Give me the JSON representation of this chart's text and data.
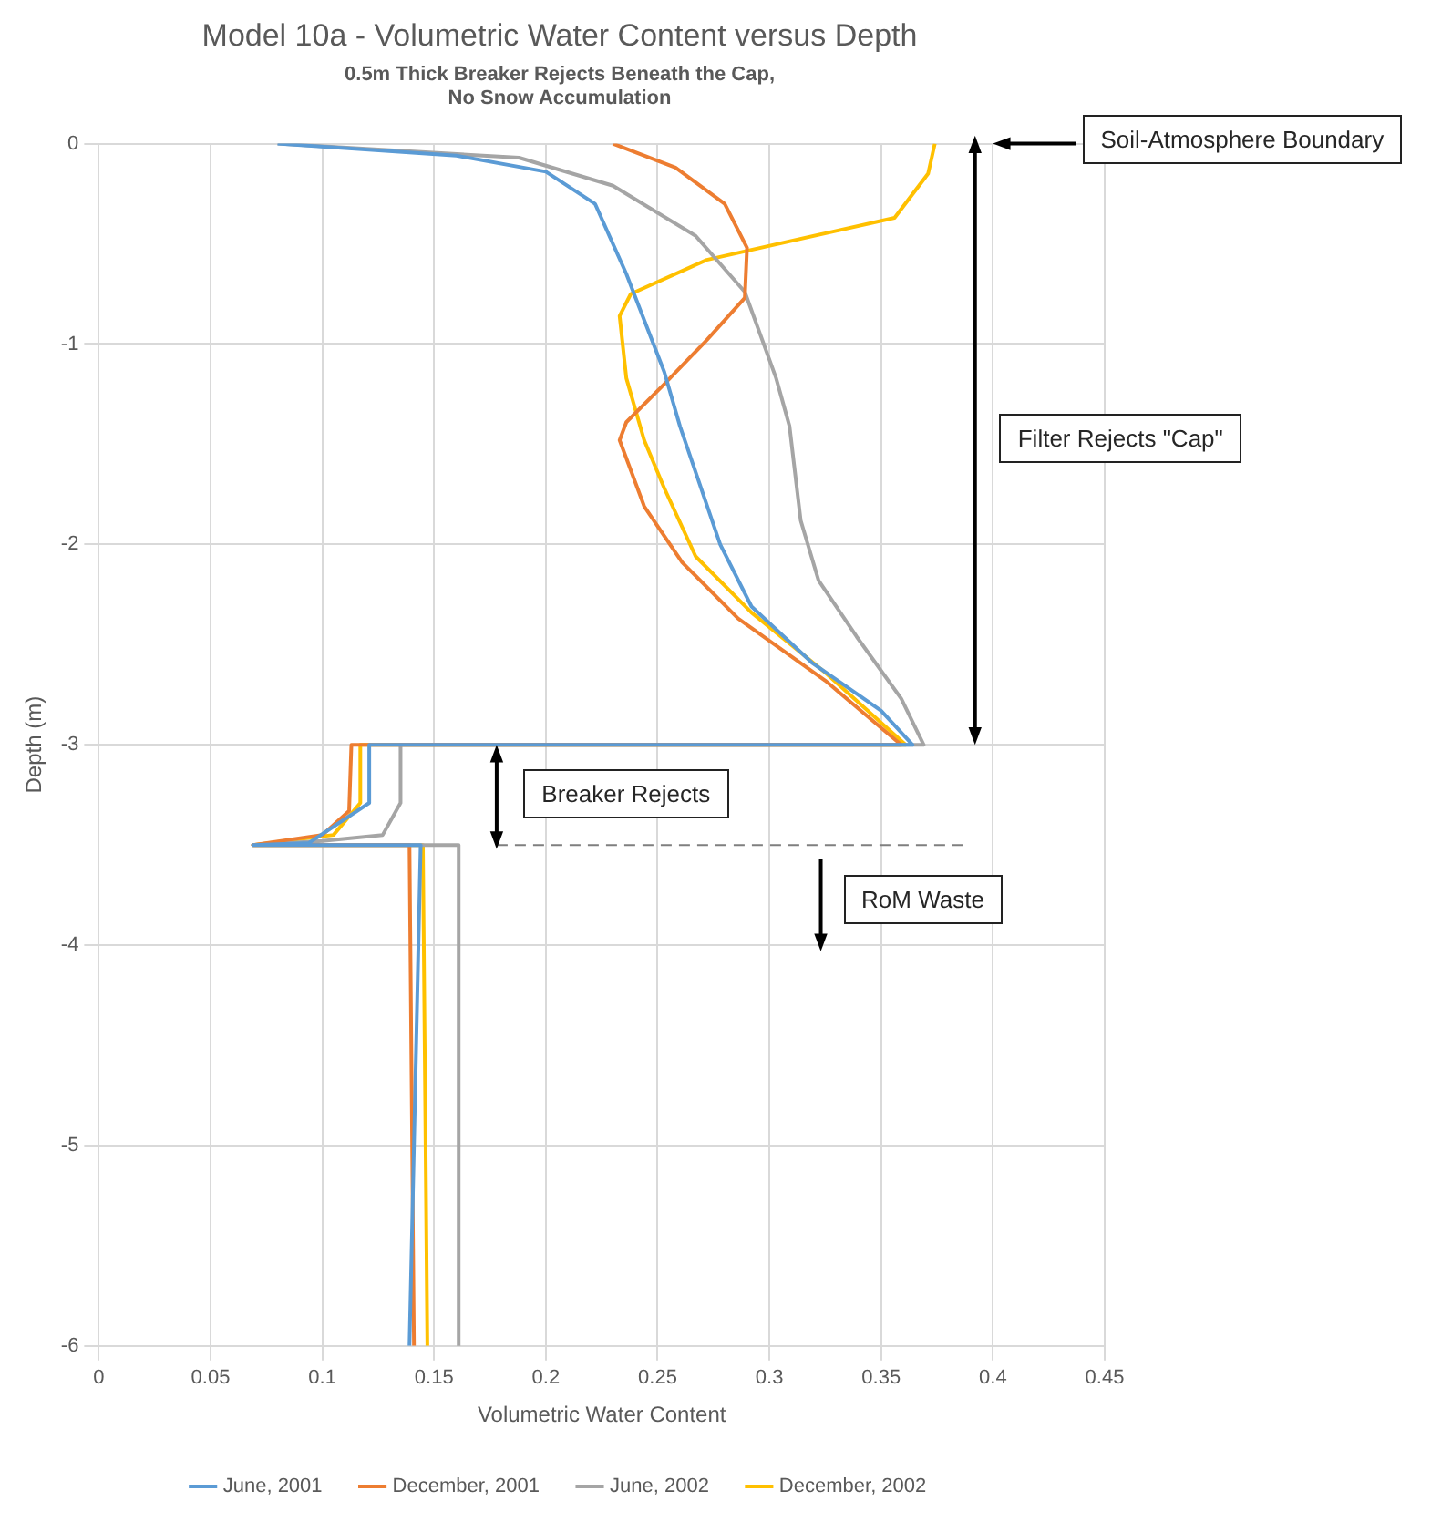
{
  "chart_data": {
    "type": "line",
    "title": "Model 10a - Volumetric Water Content versus Depth",
    "subtitle": "0.5m Thick Breaker Rejects Beneath the Cap, No Snow Accumulation",
    "xlabel": "Volumetric Water Content",
    "ylabel": "Depth (m)",
    "xlim": [
      0,
      0.45
    ],
    "xticks": [
      0,
      0.05,
      0.1,
      0.15,
      0.2,
      0.25,
      0.3,
      0.35,
      0.4,
      0.45
    ],
    "ylim": [
      -6,
      0
    ],
    "yticks": [
      -6,
      -5,
      -4,
      -3,
      -2,
      -1,
      0
    ],
    "grid": true,
    "legend": "bottom",
    "marker": "none",
    "line_style": "solid",
    "annotations": [
      "Soil-Atmosphere Boundary",
      "Filter Rejects \"Cap\"",
      "Breaker Rejects",
      "RoM Waste"
    ],
    "ref_lines": [
      {
        "axis": "y",
        "value": -3.5,
        "color": "#7f7f7f",
        "line_style": "dashed"
      }
    ],
    "series": [
      {
        "name": "June, 2001",
        "color": "#5b9bd5",
        "x": [
          0.08,
          0.16,
          0.2,
          0.222,
          0.236,
          0.253,
          0.26,
          0.278,
          0.292,
          0.319,
          0.35,
          0.364,
          0.121,
          0.121,
          0.094,
          0.069,
          0.144,
          0.139
        ],
        "values": [
          0,
          -0.06,
          -0.14,
          -0.3,
          -0.65,
          -1.14,
          -1.41,
          -2.0,
          -2.31,
          -2.59,
          -2.83,
          -3.0,
          -3.0,
          -3.29,
          -3.49,
          -3.5,
          -3.5,
          -6
        ]
      },
      {
        "name": "December, 2001",
        "color": "#ed7d31",
        "x": [
          0.23,
          0.258,
          0.28,
          0.29,
          0.289,
          0.272,
          0.253,
          0.236,
          0.233,
          0.244,
          0.261,
          0.286,
          0.325,
          0.359,
          0.113,
          0.112,
          0.1,
          0.069,
          0.139,
          0.141
        ],
        "values": [
          0,
          -0.12,
          -0.3,
          -0.52,
          -0.77,
          -0.98,
          -1.2,
          -1.39,
          -1.48,
          -1.81,
          -2.09,
          -2.37,
          -2.68,
          -3.0,
          -3.0,
          -3.33,
          -3.45,
          -3.5,
          -3.5,
          -6
        ]
      },
      {
        "name": "June, 2002",
        "color": "#a5a5a5",
        "x": [
          0.08,
          0.188,
          0.23,
          0.267,
          0.289,
          0.303,
          0.309,
          0.314,
          0.322,
          0.339,
          0.359,
          0.369,
          0.135,
          0.135,
          0.127,
          0.1,
          0.069,
          0.161,
          0.161
        ],
        "values": [
          0,
          -0.07,
          -0.21,
          -0.46,
          -0.74,
          -1.17,
          -1.41,
          -1.88,
          -2.18,
          -2.46,
          -2.77,
          -3.0,
          -3.0,
          -3.29,
          -3.45,
          -3.48,
          -3.5,
          -3.5,
          -6
        ]
      },
      {
        "name": "December, 2002",
        "color": "#ffc000",
        "x": [
          0.374,
          0.371,
          0.356,
          0.328,
          0.272,
          0.238,
          0.233,
          0.236,
          0.244,
          0.253,
          0.267,
          0.292,
          0.325,
          0.361,
          0.117,
          0.117,
          0.105,
          0.069,
          0.145,
          0.147
        ],
        "values": [
          0,
          -0.15,
          -0.37,
          -0.44,
          -0.58,
          -0.75,
          -0.86,
          -1.17,
          -1.48,
          -1.72,
          -2.06,
          -2.34,
          -2.64,
          -3.0,
          -3.0,
          -3.29,
          -3.45,
          -3.5,
          -3.5,
          -6
        ]
      }
    ]
  }
}
